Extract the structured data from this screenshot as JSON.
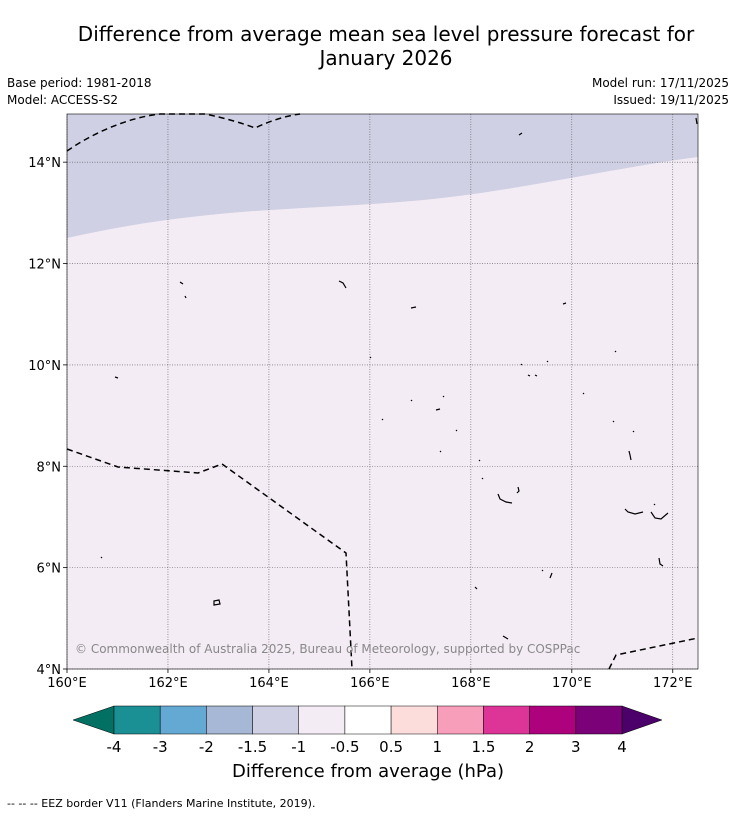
{
  "title_line1": "Difference from average mean sea level pressure forecast for",
  "title_line2": "January 2026",
  "meta": {
    "base_period": "Base period: 1981-2018",
    "model": "Model: ACCESS-S2",
    "model_run": "Model run: 17/11/2025",
    "issued": "Issued: 19/11/2025"
  },
  "map": {
    "lon_range": [
      160,
      172.5
    ],
    "lat_range": [
      4,
      14.95
    ],
    "x_ticks": [
      {
        "value": 160,
        "label": "160°E"
      },
      {
        "value": 162,
        "label": "162°E"
      },
      {
        "value": 164,
        "label": "164°E"
      },
      {
        "value": 166,
        "label": "166°E"
      },
      {
        "value": 168,
        "label": "168°E"
      },
      {
        "value": 170,
        "label": "170°E"
      },
      {
        "value": 172,
        "label": "172°E"
      }
    ],
    "y_ticks": [
      {
        "value": 4,
        "label": "4°N"
      },
      {
        "value": 6,
        "label": "6°N"
      },
      {
        "value": 8,
        "label": "8°N"
      },
      {
        "value": 10,
        "label": "10°N"
      },
      {
        "value": 12,
        "label": "12°N"
      },
      {
        "value": 14,
        "label": "14°N"
      }
    ],
    "colors": {
      "band_minus_1_5_to_minus_1": "#d0d0e4",
      "band_minus_1_to_minus_0_5": "#f4ecf5"
    },
    "copyright": "© Commonwealth of Australia 2025, Bureau of Meteorology, supported by COSPPac"
  },
  "colorbar": {
    "labels": [
      "-4",
      "-3",
      "-2",
      "-1.5",
      "-1",
      "-0.5",
      "0.5",
      "1",
      "1.5",
      "2",
      "3",
      "4"
    ],
    "colors": [
      "#1a8f94",
      "#64a9d3",
      "#a6b8d6",
      "#d0d0e4",
      "#f4ecf5",
      "#ffffff",
      "#fddcdc",
      "#f79ebb",
      "#dd3497",
      "#ae017e",
      "#7a0177"
    ],
    "low_extend_color": "#027062",
    "high_extend_color": "#4c006a",
    "title": "Difference from average (hPa)"
  },
  "footer": "--  --  -- EEZ border V11 (Flanders Marine Institute, 2019)."
}
